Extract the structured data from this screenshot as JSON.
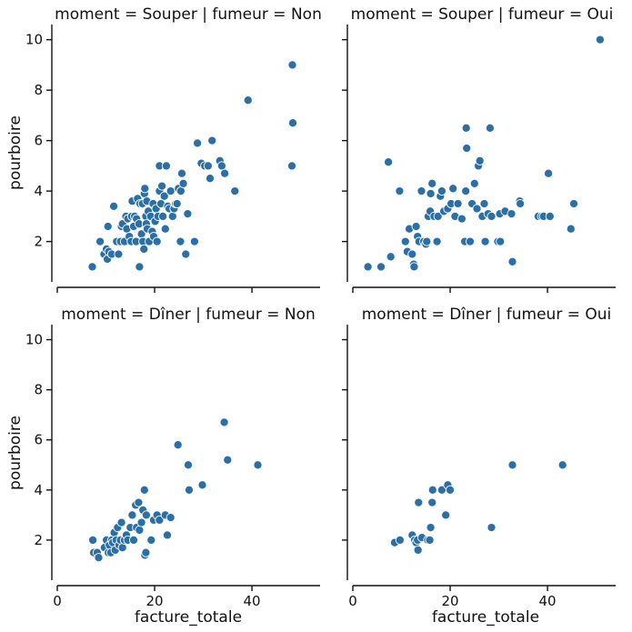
{
  "chart_data": {
    "type": "scatter",
    "xlabel": "facture_totale",
    "ylabel": "pourboire",
    "xlim": [
      0,
      54
    ],
    "ylim": [
      0.4,
      10.6
    ],
    "xticks": [
      0,
      20,
      40
    ],
    "yticks": [
      2,
      4,
      6,
      8,
      10
    ],
    "grid": false,
    "point_color": "#2a6fa8",
    "facets": [
      {
        "title": "moment = Souper | fumeur = Non",
        "row": 0,
        "col": 0,
        "points": [
          [
            7.2,
            1.0
          ],
          [
            8.8,
            2.0
          ],
          [
            9.6,
            1.5
          ],
          [
            10.1,
            1.7
          ],
          [
            10.3,
            1.3
          ],
          [
            10.4,
            2.6
          ],
          [
            10.6,
            1.6
          ],
          [
            11.2,
            1.5
          ],
          [
            11.6,
            3.4
          ],
          [
            12.2,
            2.0
          ],
          [
            12.6,
            1.5
          ],
          [
            13.0,
            2.0
          ],
          [
            13.2,
            2.6
          ],
          [
            13.4,
            2.7
          ],
          [
            13.8,
            2.0
          ],
          [
            14.1,
            3.0
          ],
          [
            14.3,
            2.5
          ],
          [
            14.5,
            2.9
          ],
          [
            14.8,
            2.2
          ],
          [
            15.2,
            2.0
          ],
          [
            15.3,
            3.0
          ],
          [
            15.4,
            3.6
          ],
          [
            15.7,
            2.6
          ],
          [
            15.9,
            3.0
          ],
          [
            16.2,
            2.0
          ],
          [
            16.3,
            2.9
          ],
          [
            16.5,
            3.7
          ],
          [
            16.8,
            2.7
          ],
          [
            16.9,
            1.0
          ],
          [
            17.0,
            3.5
          ],
          [
            17.3,
            2.3
          ],
          [
            17.5,
            3.5
          ],
          [
            17.6,
            2.0
          ],
          [
            17.8,
            1.7
          ],
          [
            17.9,
            3.9
          ],
          [
            18.0,
            4.1
          ],
          [
            18.2,
            3.0
          ],
          [
            18.3,
            2.7
          ],
          [
            18.4,
            3.6
          ],
          [
            18.5,
            2.5
          ],
          [
            18.7,
            3.2
          ],
          [
            18.9,
            2.0
          ],
          [
            19.2,
            3.0
          ],
          [
            19.5,
            2.4
          ],
          [
            19.7,
            3.5
          ],
          [
            19.8,
            2.2
          ],
          [
            20.1,
            2.8
          ],
          [
            20.3,
            3.3
          ],
          [
            20.5,
            2.0
          ],
          [
            20.7,
            3.0
          ],
          [
            21.0,
            4.0
          ],
          [
            21.0,
            5.0
          ],
          [
            21.3,
            3.5
          ],
          [
            21.5,
            4.2
          ],
          [
            21.7,
            3.0
          ],
          [
            22.0,
            3.8
          ],
          [
            22.2,
            2.5
          ],
          [
            22.4,
            5.0
          ],
          [
            22.7,
            3.4
          ],
          [
            23.0,
            3.3
          ],
          [
            23.3,
            4.0
          ],
          [
            23.7,
            3.0
          ],
          [
            24.0,
            3.3
          ],
          [
            24.3,
            3.5
          ],
          [
            24.6,
            3.5
          ],
          [
            24.9,
            4.1
          ],
          [
            25.3,
            2.0
          ],
          [
            25.4,
            4.0
          ],
          [
            25.6,
            4.7
          ],
          [
            25.9,
            4.3
          ],
          [
            26.4,
            1.5
          ],
          [
            26.8,
            3.1
          ],
          [
            28.2,
            2.0
          ],
          [
            28.8,
            5.9
          ],
          [
            29.6,
            5.1
          ],
          [
            30.3,
            5.0
          ],
          [
            31.0,
            5.0
          ],
          [
            31.4,
            4.5
          ],
          [
            31.8,
            6.0
          ],
          [
            33.4,
            5.2
          ],
          [
            33.8,
            5.0
          ],
          [
            34.4,
            4.7
          ],
          [
            36.5,
            4.0
          ],
          [
            39.2,
            7.6
          ],
          [
            48.3,
            9.0
          ],
          [
            48.4,
            6.7
          ],
          [
            48.2,
            5.0
          ]
        ]
      },
      {
        "title": "moment = Souper | fumeur = Oui",
        "row": 0,
        "col": 1,
        "points": [
          [
            3.1,
            1.0
          ],
          [
            5.8,
            1.0
          ],
          [
            7.3,
            5.15
          ],
          [
            7.8,
            1.4
          ],
          [
            9.6,
            4.0
          ],
          [
            10.8,
            2.0
          ],
          [
            11.2,
            1.6
          ],
          [
            11.6,
            2.5
          ],
          [
            12.2,
            1.5
          ],
          [
            12.5,
            1.1
          ],
          [
            12.6,
            1.0
          ],
          [
            13.0,
            2.6
          ],
          [
            13.3,
            2.2
          ],
          [
            13.6,
            2.0
          ],
          [
            14.1,
            4.0
          ],
          [
            14.6,
            2.0
          ],
          [
            15.0,
            1.9
          ],
          [
            15.2,
            2.0
          ],
          [
            15.5,
            3.0
          ],
          [
            15.9,
            3.2
          ],
          [
            16.0,
            3.9
          ],
          [
            16.3,
            4.3
          ],
          [
            16.7,
            3.0
          ],
          [
            17.3,
            2.0
          ],
          [
            17.5,
            3.0
          ],
          [
            18.0,
            3.8
          ],
          [
            18.3,
            4.0
          ],
          [
            18.7,
            3.2
          ],
          [
            19.5,
            3.3
          ],
          [
            20.2,
            3.5
          ],
          [
            20.6,
            4.1
          ],
          [
            21.0,
            3.0
          ],
          [
            21.6,
            3.5
          ],
          [
            22.4,
            2.9
          ],
          [
            23.0,
            2.0
          ],
          [
            23.2,
            4.0
          ],
          [
            23.3,
            6.5
          ],
          [
            23.4,
            5.7
          ],
          [
            24.1,
            2.0
          ],
          [
            24.5,
            3.5
          ],
          [
            25.0,
            4.3
          ],
          [
            25.5,
            3.3
          ],
          [
            25.8,
            5.0
          ],
          [
            26.1,
            5.2
          ],
          [
            26.6,
            3.0
          ],
          [
            27.0,
            3.5
          ],
          [
            27.2,
            2.0
          ],
          [
            27.8,
            3.1
          ],
          [
            28.2,
            6.5
          ],
          [
            28.5,
            3.0
          ],
          [
            29.8,
            2.0
          ],
          [
            30.2,
            3.1
          ],
          [
            30.3,
            2.0
          ],
          [
            31.3,
            3.2
          ],
          [
            32.6,
            3.1
          ],
          [
            32.8,
            1.2
          ],
          [
            34.3,
            3.6
          ],
          [
            34.4,
            3.5
          ],
          [
            38.1,
            3.0
          ],
          [
            38.8,
            3.0
          ],
          [
            39.2,
            3.0
          ],
          [
            40.2,
            4.7
          ],
          [
            40.5,
            3.0
          ],
          [
            44.8,
            2.5
          ],
          [
            45.4,
            3.5
          ],
          [
            50.8,
            10.0
          ]
        ]
      },
      {
        "title": "moment = Dîner | fumeur = Non",
        "row": 1,
        "col": 0,
        "points": [
          [
            7.3,
            2.0
          ],
          [
            7.5,
            1.5
          ],
          [
            8.2,
            1.5
          ],
          [
            8.5,
            1.3
          ],
          [
            9.7,
            1.7
          ],
          [
            10.1,
            2.0
          ],
          [
            10.5,
            1.5
          ],
          [
            10.7,
            1.8
          ],
          [
            11.0,
            1.5
          ],
          [
            11.2,
            2.0
          ],
          [
            11.4,
            1.9
          ],
          [
            11.7,
            2.3
          ],
          [
            11.9,
            1.6
          ],
          [
            12.1,
            2.0
          ],
          [
            12.4,
            2.5
          ],
          [
            12.7,
            1.8
          ],
          [
            13.0,
            2.0
          ],
          [
            13.2,
            2.7
          ],
          [
            13.4,
            1.7
          ],
          [
            13.8,
            2.0
          ],
          [
            14.2,
            2.2
          ],
          [
            14.5,
            2.0
          ],
          [
            15.0,
            2.5
          ],
          [
            15.4,
            3.0
          ],
          [
            15.7,
            2.0
          ],
          [
            16.1,
            3.4
          ],
          [
            16.3,
            2.5
          ],
          [
            16.7,
            3.5
          ],
          [
            16.9,
            2.4
          ],
          [
            17.3,
            2.7
          ],
          [
            17.6,
            3.2
          ],
          [
            17.9,
            4.0
          ],
          [
            18.0,
            1.4
          ],
          [
            18.2,
            1.5
          ],
          [
            18.3,
            3.0
          ],
          [
            19.3,
            2.0
          ],
          [
            19.8,
            2.8
          ],
          [
            20.5,
            3.0
          ],
          [
            21.0,
            2.8
          ],
          [
            22.2,
            3.0
          ],
          [
            22.6,
            2.2
          ],
          [
            23.3,
            2.9
          ],
          [
            24.8,
            5.8
          ],
          [
            26.9,
            5.0
          ],
          [
            27.1,
            4.0
          ],
          [
            29.8,
            4.2
          ],
          [
            34.3,
            6.7
          ],
          [
            35.0,
            5.2
          ],
          [
            41.2,
            5.0
          ]
        ]
      },
      {
        "title": "moment = Dîner | fumeur = Oui",
        "row": 1,
        "col": 1,
        "points": [
          [
            8.6,
            1.9
          ],
          [
            9.7,
            2.0
          ],
          [
            12.2,
            2.2
          ],
          [
            12.7,
            2.0
          ],
          [
            13.0,
            1.9
          ],
          [
            13.3,
            2.0
          ],
          [
            13.4,
            1.6
          ],
          [
            13.5,
            3.5
          ],
          [
            14.2,
            2.1
          ],
          [
            15.4,
            2.0
          ],
          [
            15.8,
            2.0
          ],
          [
            16.0,
            2.5
          ],
          [
            16.3,
            3.5
          ],
          [
            16.4,
            4.0
          ],
          [
            18.3,
            4.0
          ],
          [
            19.1,
            3.0
          ],
          [
            19.5,
            4.2
          ],
          [
            20.0,
            4.0
          ],
          [
            28.5,
            2.5
          ],
          [
            32.8,
            5.0
          ],
          [
            43.1,
            5.0
          ]
        ]
      }
    ]
  }
}
